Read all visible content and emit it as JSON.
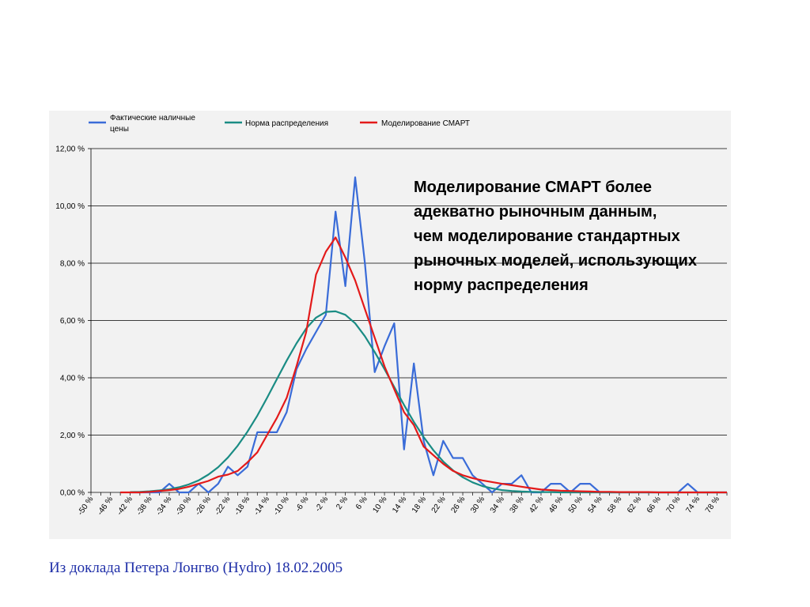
{
  "chart_data": {
    "type": "line",
    "x": [
      -50,
      -48,
      -46,
      -44,
      -42,
      -40,
      -38,
      -36,
      -34,
      -32,
      -30,
      -28,
      -26,
      -24,
      -22,
      -20,
      -18,
      -16,
      -14,
      -12,
      -10,
      -8,
      -6,
      -4,
      -2,
      0,
      2,
      4,
      6,
      8,
      10,
      12,
      14,
      16,
      18,
      20,
      22,
      24,
      26,
      28,
      30,
      32,
      34,
      36,
      38,
      40,
      42,
      44,
      46,
      48,
      50,
      52,
      54,
      56,
      58,
      60,
      62,
      64,
      66,
      68,
      70,
      72,
      74,
      76,
      78,
      80
    ],
    "x_tick_labels": [
      "-50 %",
      "-46 %",
      "-42 %",
      "-38 %",
      "-34 %",
      "-30 %",
      "-26 %",
      "-22 %",
      "-18 %",
      "-14 %",
      "-10 %",
      "-6 %",
      "-2 %",
      "2 %",
      "6 %",
      "10 %",
      "14 %",
      "18 %",
      "22 %",
      "26 %",
      "30 %",
      "34 %",
      "38 %",
      "42 %",
      "46 %",
      "50 %",
      "54 %",
      "58 %",
      "62 %",
      "66 %",
      "70 %",
      "74 %",
      "78 %"
    ],
    "y_tick_labels": [
      "0,00 %",
      "2,00 %",
      "4,00 %",
      "6,00 %",
      "8,00 %",
      "10,00 %",
      "12,00 %"
    ],
    "ylim": [
      0,
      12
    ],
    "grid": true,
    "legend_position": "top-left",
    "series": [
      {
        "name": "Фактические наличные цены",
        "color": "#3a6cd8",
        "values": [
          null,
          null,
          null,
          null,
          0,
          0,
          0,
          0,
          0.3,
          0,
          0,
          0.3,
          0,
          0.3,
          0.9,
          0.6,
          0.9,
          2.1,
          2.1,
          2.1,
          2.8,
          4.3,
          5.0,
          5.6,
          6.2,
          9.8,
          7.2,
          11.0,
          8.0,
          4.2,
          5.1,
          5.9,
          1.5,
          4.5,
          1.8,
          0.6,
          1.8,
          1.2,
          1.2,
          0.6,
          0.3,
          0,
          0.3,
          0.3,
          0.6,
          0,
          0,
          0.3,
          0.3,
          0,
          0.3,
          0.3,
          0,
          0,
          0,
          0,
          0,
          0,
          0,
          0,
          0,
          0.3,
          0,
          0,
          0,
          0
        ]
      },
      {
        "name": "Норма распределения",
        "color": "#1a8c84",
        "values": [
          null,
          null,
          null,
          null,
          0.01,
          0.02,
          0.04,
          0.07,
          0.11,
          0.18,
          0.28,
          0.42,
          0.62,
          0.88,
          1.22,
          1.63,
          2.12,
          2.68,
          3.3,
          3.95,
          4.6,
          5.2,
          5.72,
          6.1,
          6.3,
          6.32,
          6.2,
          5.9,
          5.45,
          4.9,
          4.3,
          3.68,
          3.05,
          2.46,
          1.93,
          1.47,
          1.08,
          0.77,
          0.53,
          0.35,
          0.22,
          0.14,
          0.08,
          0.05,
          0.03,
          0.02,
          0.01,
          0.01,
          0,
          0,
          0,
          0,
          0,
          0,
          0,
          0,
          0,
          0,
          0,
          0,
          0,
          0,
          0,
          0,
          0,
          0
        ]
      },
      {
        "name": "Моделирование СМАРТ",
        "color": "#e31a1a",
        "values": [
          null,
          null,
          null,
          0,
          0,
          0,
          0.02,
          0.05,
          0.08,
          0.12,
          0.2,
          0.3,
          0.4,
          0.55,
          0.62,
          0.75,
          1.05,
          1.4,
          2.0,
          2.6,
          3.3,
          4.4,
          5.6,
          7.6,
          8.4,
          8.9,
          8.2,
          7.4,
          6.4,
          5.4,
          4.4,
          3.6,
          2.8,
          2.35,
          1.6,
          1.3,
          1.0,
          0.75,
          0.6,
          0.5,
          0.42,
          0.36,
          0.3,
          0.25,
          0.2,
          0.15,
          0.1,
          0.08,
          0.06,
          0.05,
          0.04,
          0.03,
          0.02,
          0.02,
          0.01,
          0.01,
          0.01,
          0.01,
          0,
          0,
          0,
          0,
          0,
          0,
          0,
          0
        ]
      }
    ]
  },
  "annotation": {
    "lines": [
      "Моделирование СМАРТ более",
      "адекватно рыночным данным,",
      "чем моделирование стандартных",
      "рыночных моделей, использующих",
      "норму распределения"
    ]
  },
  "source_note": "Из доклада Петера Лонгво (Hydro) 18.02.2005",
  "legend_lines": {
    "s0": [
      "Фактические наличные",
      "цены"
    ],
    "s1": [
      "Норма распределения"
    ],
    "s2": [
      "Моделирование СМАРТ"
    ]
  }
}
